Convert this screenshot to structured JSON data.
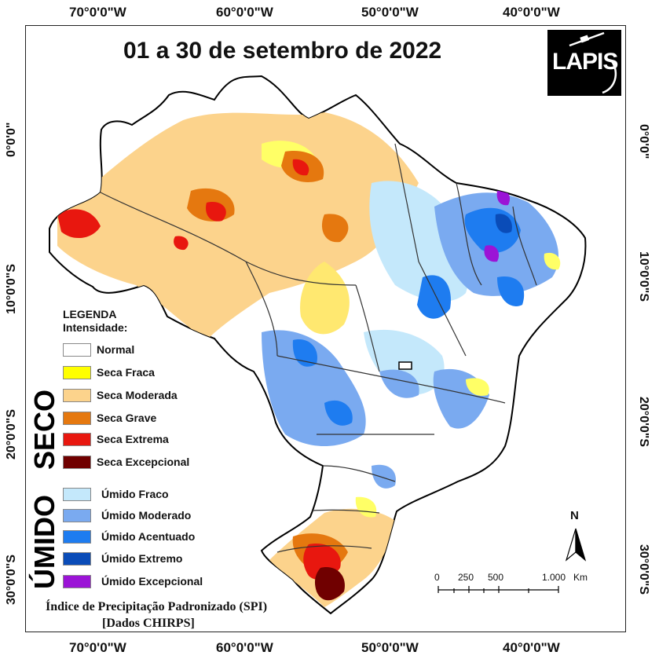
{
  "title": "01 a 30 de setembro de 2022",
  "logo": {
    "text": "LAPIS"
  },
  "graticule": {
    "lon_labels": [
      "70°0'0\"W",
      "60°0'0\"W",
      "50°0'0\"W",
      "40°0'0\"W"
    ],
    "lat_labels": [
      "0°0'0\"",
      "10°0'0\"S",
      "20°0'0\"S",
      "30°0'0\"S"
    ]
  },
  "legend": {
    "title_line1": "LEGENDA",
    "title_line2": "Intensidade:",
    "dry_group_label": "SECO",
    "wet_group_label": "ÚMIDO",
    "dry_items": [
      {
        "label": "Normal",
        "color": "#ffffff"
      },
      {
        "label": "Seca Fraca",
        "color": "#ffff00"
      },
      {
        "label": "Seca Moderada",
        "color": "#fcd38c"
      },
      {
        "label": "Seca Grave",
        "color": "#e5780f"
      },
      {
        "label": "Seca Extrema",
        "color": "#e8170f"
      },
      {
        "label": "Seca Excepcional",
        "color": "#700000"
      }
    ],
    "wet_items": [
      {
        "label": "Úmido Fraco",
        "color": "#c4e8fb"
      },
      {
        "label": "Úmido Moderado",
        "color": "#7aaaf0"
      },
      {
        "label": "Úmido Acentuado",
        "color": "#1e7cf0"
      },
      {
        "label": "Úmido Extremo",
        "color": "#0a4cb8"
      },
      {
        "label": "Úmido Excepcional",
        "color": "#9b14d6"
      }
    ]
  },
  "caption": {
    "line1": "Índice de Precipitação Padronizado (SPI)",
    "line2": "[Dados CHIRPS]"
  },
  "scale_bar": {
    "ticks": [
      "0",
      "250",
      "500",
      "1.000"
    ],
    "unit": "Km"
  },
  "north_arrow": {
    "label": "N"
  }
}
